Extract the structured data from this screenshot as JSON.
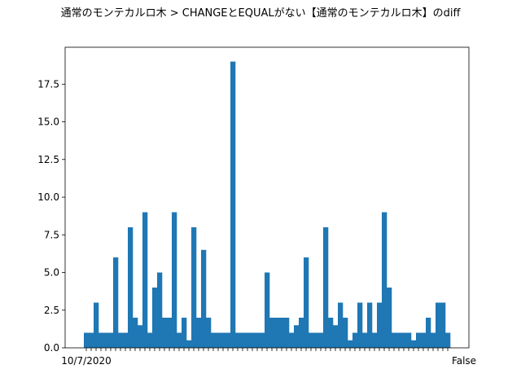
{
  "chart_data": {
    "type": "bar",
    "title": "通常のモンテカルロ木 > CHANGEとEQUALがない【通常のモンテカルロ木】のdiff",
    "xlabel": "",
    "ylabel": "",
    "ylim": [
      0,
      19.95
    ],
    "yticks": [
      0.0,
      2.5,
      5.0,
      7.5,
      10.0,
      12.5,
      15.0,
      17.5
    ],
    "ytick_labels": [
      "0.0",
      "2.5",
      "5.0",
      "7.5",
      "10.0",
      "12.5",
      "15.0",
      "17.5"
    ],
    "grid": false,
    "bar_color": "#1f77b4",
    "first_category_label": "10/7/2020",
    "last_category_label": "False",
    "values": [
      1,
      1,
      3,
      1,
      1,
      1,
      6,
      1,
      1,
      8,
      2,
      1.5,
      9,
      1,
      4,
      5,
      2,
      2,
      9,
      1,
      2,
      0.5,
      8,
      2,
      6.5,
      2,
      1,
      1,
      1,
      1,
      19,
      1,
      1,
      1,
      1,
      1,
      1,
      5,
      2,
      2,
      2,
      2,
      1,
      1.5,
      2,
      6,
      1,
      1,
      1,
      8,
      2,
      1.5,
      3,
      2,
      0.5,
      1,
      3,
      1,
      3,
      1,
      3,
      9,
      4,
      1,
      1,
      1,
      1,
      0.5,
      1,
      1,
      2,
      1,
      3,
      3,
      1
    ]
  }
}
